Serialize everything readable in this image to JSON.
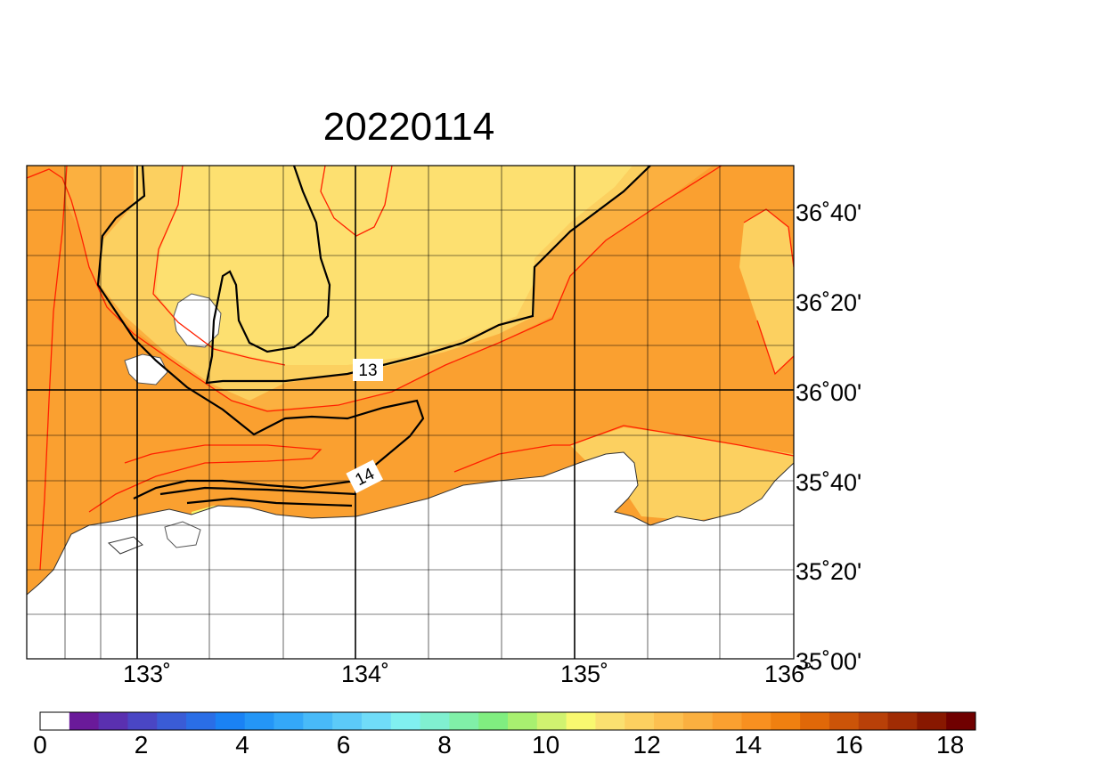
{
  "title": "20220114",
  "longitude_ticks": [
    "133˚",
    "134˚",
    "135˚",
    "136˚"
  ],
  "latitude_ticks": [
    "36˚40'",
    "36˚20'",
    "36˚00'",
    "35˚40'",
    "35˚20'",
    "35˚00'"
  ],
  "contour_labels": [
    "13",
    "14"
  ],
  "colorbar": {
    "labels": [
      "0",
      "2",
      "4",
      "6",
      "8",
      "10",
      "12",
      "14",
      "16",
      "18"
    ],
    "colors": [
      "#ffffff",
      "#6a1a9a",
      "#5a30b0",
      "#4a46c4",
      "#3a5cd6",
      "#2a6ee6",
      "#1a82f4",
      "#2496f6",
      "#34a8f8",
      "#48baf8",
      "#5ccaf8",
      "#70dcf8",
      "#80f0f0",
      "#80f0d0",
      "#80f0a8",
      "#80ee80",
      "#a8f070",
      "#d0f270",
      "#f8f870",
      "#fae070",
      "#fcd060",
      "#fcc050",
      "#fab040",
      "#faa030",
      "#f89020",
      "#f08010",
      "#e06808",
      "#cc5408",
      "#b84008",
      "#a02c04",
      "#881800",
      "#700000"
    ]
  },
  "colors": {
    "sea_warm": "#faa030",
    "sea_mid": "#fbb040",
    "sea_cool": "#fcd060",
    "sea_light": "#fde070",
    "sea_pale": "#f8f870",
    "land": "#ffffff",
    "isoline_red": "#ff2000",
    "isoline_black": "#000000"
  }
}
